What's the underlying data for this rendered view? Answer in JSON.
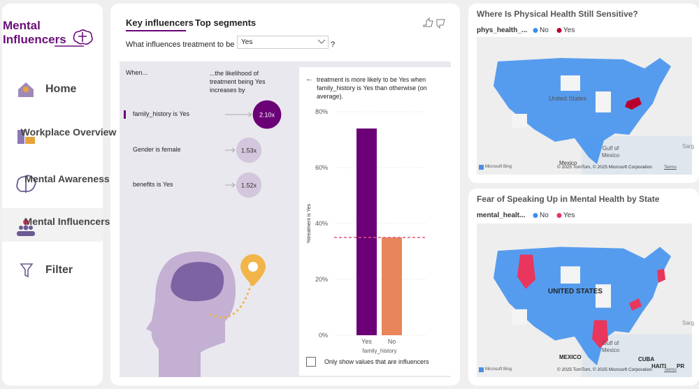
{
  "sidebar": {
    "title": "Mental Influencers",
    "nav": [
      "Home",
      "Workplace Overview",
      "Mental Awareness",
      "Mental Influencers",
      "Filter"
    ],
    "active": 3
  },
  "key_influencers": {
    "tabs": [
      "Key influencers",
      "Top segments"
    ],
    "question": "What influences treatment to be",
    "target": "Yes",
    "help": "?",
    "col_when": "When...",
    "col_likelihood": "...the likelihood of treatment being Yes increases by",
    "influencers": [
      {
        "label": "family_history is Yes",
        "value": 2.1,
        "value_label": "2.10x",
        "color": "#6b0077"
      },
      {
        "label": "Gender is female",
        "value": 1.53,
        "value_label": "1.53x",
        "color": "#d4c6dc"
      },
      {
        "label": "benefits is Yes",
        "value": 1.52,
        "value_label": "1.52x",
        "color": "#d4c6dc"
      }
    ],
    "detail": "treatment is more likely to be Yes when family_history is Yes than otherwise (on average).",
    "chart": {
      "type": "bar",
      "y_label": "%treatment is Yes",
      "x_label": "family_history",
      "categories": [
        "Yes",
        "No"
      ],
      "values": [
        74,
        35
      ],
      "colors": [
        "#6b0077",
        "#e8855a"
      ],
      "reference_line": 35,
      "reference_color": "#e4577a",
      "ylim": [
        0,
        80
      ],
      "yticks": [
        {
          "value": 0,
          "label": "0%"
        },
        {
          "value": 20,
          "label": "20%"
        },
        {
          "value": 40,
          "label": "40%"
        },
        {
          "value": 60,
          "label": "60%"
        },
        {
          "value": 80,
          "label": "80%"
        }
      ],
      "grid": true
    },
    "checkbox": "Only show values that are influencers"
  },
  "maps": [
    {
      "title": "Where Is Physical Health Still Sensitive?",
      "legend_title": "phys_health_...",
      "legend": [
        {
          "name": "No",
          "color": "#3b8ded"
        },
        {
          "name": "Yes",
          "color": "#b8002e"
        }
      ],
      "labels": [
        "United States",
        "Gulf of Mexico",
        "Mexico",
        "Sarg"
      ],
      "attribution": "© 2025 TomTom, © 2025 Microsoft Corporation",
      "terms": "Terms",
      "brand": "Microsoft Bing"
    },
    {
      "title": "Fear of Speaking Up in Mental Health by State",
      "legend_title": "mental_healt...",
      "legend": [
        {
          "name": "No",
          "color": "#3b8ded"
        },
        {
          "name": "Yes",
          "color": "#e8365d"
        }
      ],
      "labels": [
        "UNITED STATES",
        "Gulf of Mexico",
        "MEXICO",
        "CUBA",
        "HAITI",
        "PR",
        "Sarg"
      ],
      "attribution": "© 2025 TomTom, © 2025 Microsoft Corporation",
      "terms": "Terms",
      "brand": "Microsoft Bing"
    }
  ]
}
